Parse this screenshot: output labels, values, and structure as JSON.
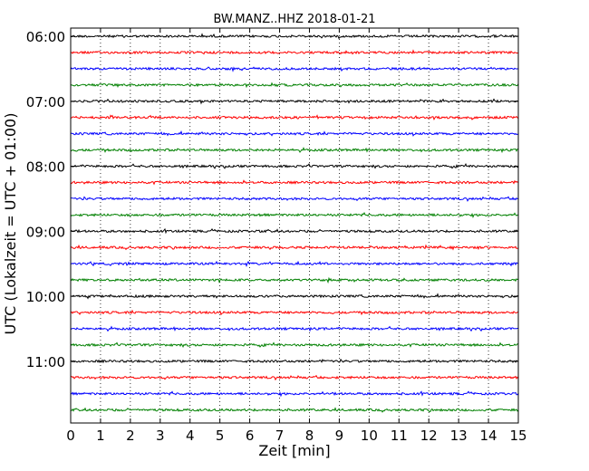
{
  "chart_data": {
    "type": "line",
    "title": "BW.MANZ..HHZ 2018-01-21",
    "xlabel": "Zeit  [min]",
    "ylabel": "UTC (Lokalzeit = UTC + 01:00)",
    "xlim": [
      0,
      15
    ],
    "x_ticks": [
      "0",
      "1",
      "2",
      "3",
      "4",
      "5",
      "6",
      "7",
      "8",
      "9",
      "10",
      "11",
      "12",
      "13",
      "14",
      "15"
    ],
    "y_ticks": [
      "06:00",
      "07:00",
      "08:00",
      "09:00",
      "10:00",
      "11:00"
    ],
    "grid": "vertical-dotted",
    "colors": [
      "#000000",
      "#ff0000",
      "#0000ff",
      "#008000"
    ],
    "traces": [
      {
        "time": "06:00",
        "color": "#000000"
      },
      {
        "time": "06:15",
        "color": "#ff0000"
      },
      {
        "time": "06:30",
        "color": "#0000ff"
      },
      {
        "time": "06:45",
        "color": "#008000"
      },
      {
        "time": "07:00",
        "color": "#000000"
      },
      {
        "time": "07:15",
        "color": "#ff0000"
      },
      {
        "time": "07:30",
        "color": "#0000ff"
      },
      {
        "time": "07:45",
        "color": "#008000"
      },
      {
        "time": "08:00",
        "color": "#000000"
      },
      {
        "time": "08:15",
        "color": "#ff0000"
      },
      {
        "time": "08:30",
        "color": "#0000ff"
      },
      {
        "time": "08:45",
        "color": "#008000"
      },
      {
        "time": "09:00",
        "color": "#000000"
      },
      {
        "time": "09:15",
        "color": "#ff0000"
      },
      {
        "time": "09:30",
        "color": "#0000ff"
      },
      {
        "time": "09:45",
        "color": "#008000"
      },
      {
        "time": "10:00",
        "color": "#000000"
      },
      {
        "time": "10:15",
        "color": "#ff0000"
      },
      {
        "time": "10:30",
        "color": "#0000ff"
      },
      {
        "time": "10:45",
        "color": "#008000"
      },
      {
        "time": "11:00",
        "color": "#000000"
      },
      {
        "time": "11:15",
        "color": "#ff0000"
      },
      {
        "time": "11:30",
        "color": "#0000ff"
      },
      {
        "time": "11:45",
        "color": "#008000"
      }
    ]
  }
}
